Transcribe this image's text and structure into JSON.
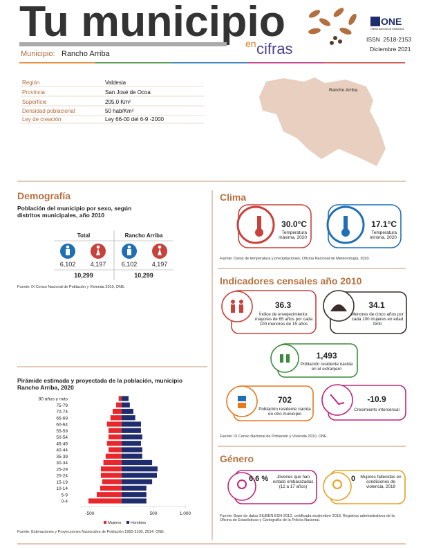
{
  "header": {
    "title": "Tu municipio",
    "subtitle_en": "en",
    "subtitle_cifras": "cifras",
    "logo": "ONE",
    "logo_text": "Oficina Nacional de Estadística",
    "issn": "ISSN  2518-2153",
    "date": "Diciembre 2021",
    "municipio_label": "Municipio:",
    "municipio": "Rancho Arriba"
  },
  "info": {
    "rows": [
      [
        "Región",
        "Valdesia"
      ],
      [
        "Provincia",
        "San José de Ocoa"
      ],
      [
        "Superficie",
        "205.0 Km²"
      ],
      [
        "Densidad poblacional",
        "50 hab/Km²"
      ],
      [
        "Ley de creación",
        "Ley 66-00 del 6-9 -2000"
      ]
    ],
    "map_label": "Rancho Arriba"
  },
  "demografia": {
    "title": "Demografía",
    "subtitle": "Población del municipio por sexo, según distritos municipales, año 2010",
    "columns": [
      {
        "name": "Total",
        "hombres": "6,102",
        "mujeres": "4,197",
        "total": "10,299"
      },
      {
        "name": "Rancho Arriba",
        "hombres": "6,102",
        "mujeres": "4,197",
        "total": "10,299"
      }
    ],
    "source": "Fuente: IX Censo Nacional de Población y Vivienda 2010, ONE."
  },
  "clima": {
    "title": "Clima",
    "items": [
      {
        "value": "30.0°C",
        "label": "Temperatura máxima, 2020"
      },
      {
        "value": "17.1°C",
        "label": "Temperatura mínima, 2020"
      }
    ],
    "source": "Fuente: Datos de temperatura y precipitaciones, Oficina Nacional de Meteorología, 2020."
  },
  "indicadores": {
    "title": "Indicadores censales año 2010",
    "items": [
      {
        "value": "36.3",
        "label": "Índice de envejecimiento: mayores de 65 años por cada 100 menores de 15 años"
      },
      {
        "value": "34.1",
        "label": "Menores de cinco años por cada 100 mujeres en edad fértil"
      },
      {
        "value": "1,493",
        "label": "Población residente nacida en el extranjero"
      },
      {
        "value": "702",
        "label": "Población residente nacida en otro municipio"
      },
      {
        "value": "-10.9",
        "label": "Crecimiento intercensal"
      }
    ],
    "source": "Fuente: IX Censo Nacional de Población y Vivienda 2010, ONE."
  },
  "genero": {
    "title": "Género",
    "items": [
      {
        "value": "6.6 %",
        "label": "Jóvenes que han estado embarazadas (12 a 17 años)"
      },
      {
        "value": "0",
        "label": "Mujeres fallecidas en condiciones de violencia, 2019"
      }
    ],
    "source": "Fuente: Base de datos SIUBEN ESH-2012, certificada septiembre 2018. Registros administrativos de la Oficina de Estadísticas y Cartografía de la Policía Nacional."
  },
  "chart_data": {
    "type": "bar",
    "orientation": "horizontal",
    "title": "Pirámide estimada y proyectada de la población, municipio Rancho Arriba, 2020",
    "categories": [
      "80 años y más",
      "75-79",
      "70-74",
      "65-69",
      "60-64",
      "55-59",
      "50-54",
      "45-49",
      "40-44",
      "35-39",
      "30-34",
      "25-29",
      "20-24",
      "15-19",
      "10-14",
      "5-9",
      "0-4"
    ],
    "series": [
      {
        "name": "Mujeres",
        "color": "#e8262b",
        "values": [
          -45,
          -85,
          -140,
          -175,
          -230,
          -205,
          -205,
          -230,
          -205,
          -250,
          -285,
          -325,
          -325,
          -305,
          -335,
          -390,
          -520
        ]
      },
      {
        "name": "Hombres",
        "color": "#1f2d6e",
        "values": [
          110,
          130,
          185,
          215,
          305,
          305,
          325,
          305,
          325,
          325,
          480,
          565,
          555,
          480,
          390,
          390,
          390
        ]
      }
    ],
    "xlim": [
      -650,
      1000
    ],
    "xticks": [
      -500,
      500,
      {
        "value": 1000,
        "label": "1,000"
      }
    ],
    "legend": "bottom",
    "source": "Fuente: Estimaciones y Proyecciones Nacionales de Población 1950-2100, 2014. ONE."
  }
}
